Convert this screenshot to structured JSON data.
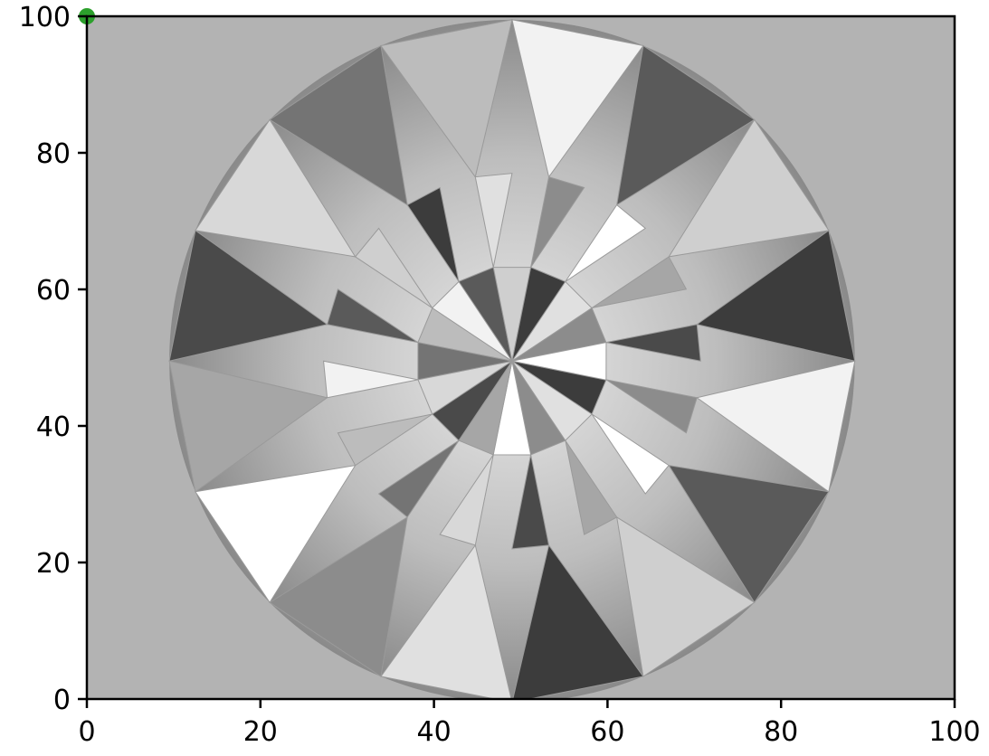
{
  "chart_data": {
    "type": "scatter",
    "title": "",
    "xlabel": "",
    "ylabel": "",
    "xlim": [
      0,
      100
    ],
    "ylim": [
      0,
      100
    ],
    "xticks": [
      0,
      20,
      40,
      60,
      80,
      100
    ],
    "yticks": [
      0,
      20,
      40,
      60,
      80,
      100
    ],
    "xtick_labels": [
      "0",
      "20",
      "40",
      "60",
      "80",
      "100"
    ],
    "ytick_labels": [
      "0",
      "20",
      "40",
      "60",
      "80",
      "100"
    ],
    "grid": false,
    "background_image": "round-brilliant-diamond-grayscale-photo",
    "series": [
      {
        "color": "#2ca02c",
        "points": [
          {
            "x": 0,
            "y": 100
          }
        ]
      }
    ]
  }
}
